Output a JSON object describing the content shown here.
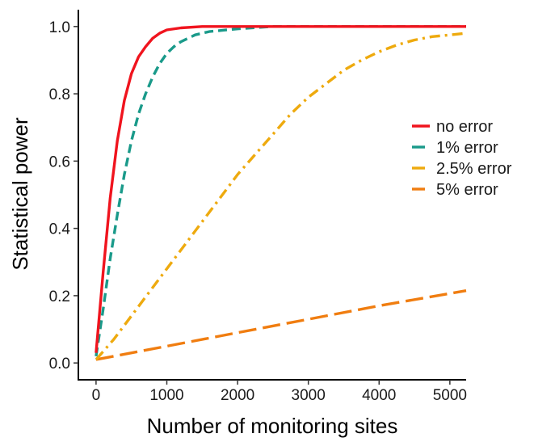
{
  "chart_data": {
    "type": "line",
    "title": "",
    "xlabel": "Number of monitoring sites",
    "ylabel": "Statistical power",
    "xlim": [
      -250,
      5230
    ],
    "ylim": [
      -0.05,
      1.05
    ],
    "xticks": [
      0,
      1000,
      2000,
      3000,
      4000,
      5000
    ],
    "xtick_labels": [
      "0",
      "1000",
      "2000",
      "3000",
      "4000",
      "5000"
    ],
    "yticks": [
      0.0,
      0.2,
      0.4,
      0.6,
      0.8,
      1.0
    ],
    "ytick_labels": [
      "0.0",
      "0.2",
      "0.4",
      "0.6",
      "0.8",
      "1.0"
    ],
    "grid": false,
    "legend_position": "right",
    "series": [
      {
        "name": "no error",
        "color": "#f0141e",
        "dash": "solid",
        "x": [
          0,
          100,
          200,
          300,
          400,
          500,
          600,
          700,
          800,
          900,
          1000,
          1200,
          1500,
          2000,
          3000,
          4000,
          5230
        ],
        "y": [
          0.03,
          0.27,
          0.49,
          0.66,
          0.78,
          0.86,
          0.91,
          0.94,
          0.965,
          0.98,
          0.99,
          0.996,
          1.0,
          1.0,
          1.0,
          1.0,
          1.0
        ]
      },
      {
        "name": "1% error",
        "color": "#1a9a8a",
        "dash": "dashed",
        "x": [
          0,
          100,
          200,
          300,
          400,
          500,
          600,
          700,
          800,
          900,
          1000,
          1100,
          1200,
          1400,
          1600,
          2000,
          2500,
          3000,
          4000,
          5230
        ],
        "y": [
          0.02,
          0.16,
          0.31,
          0.44,
          0.56,
          0.66,
          0.74,
          0.8,
          0.85,
          0.89,
          0.92,
          0.94,
          0.955,
          0.975,
          0.985,
          0.993,
          1.0,
          1.0,
          1.0,
          1.0
        ]
      },
      {
        "name": "2.5% error",
        "color": "#eeaa0e",
        "dash": "dashdot",
        "x": [
          0,
          250,
          500,
          750,
          1000,
          1250,
          1500,
          1750,
          2000,
          2250,
          2500,
          2750,
          3000,
          3250,
          3500,
          3750,
          4000,
          4250,
          4500,
          4750,
          5000,
          5230
        ],
        "y": [
          0.01,
          0.07,
          0.14,
          0.21,
          0.28,
          0.35,
          0.42,
          0.49,
          0.56,
          0.62,
          0.68,
          0.74,
          0.79,
          0.83,
          0.87,
          0.9,
          0.925,
          0.945,
          0.96,
          0.97,
          0.975,
          0.98
        ]
      },
      {
        "name": "5% error",
        "color": "#f07d10",
        "dash": "longdash",
        "x": [
          0,
          1000,
          2000,
          3000,
          4000,
          5230
        ],
        "y": [
          0.01,
          0.05,
          0.09,
          0.13,
          0.17,
          0.215
        ]
      }
    ]
  }
}
